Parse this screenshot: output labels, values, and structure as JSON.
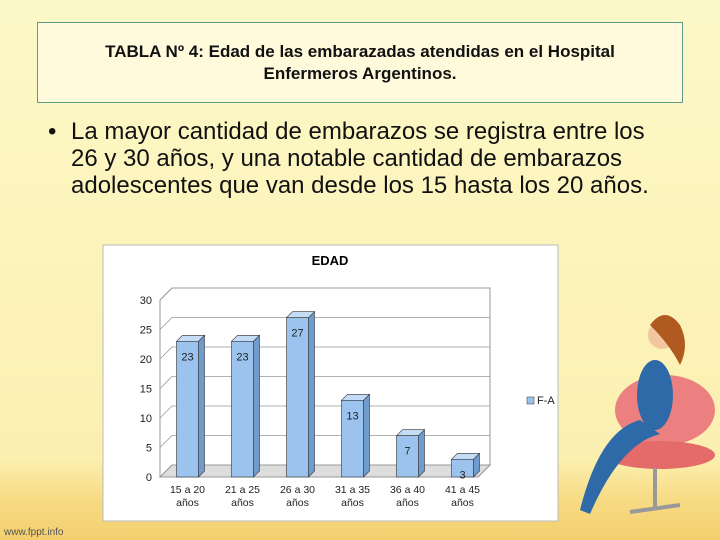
{
  "slide": {
    "title": "TABLA Nº 4: Edad de las embarazadas atendidas en el Hospital Enfermeros Argentinos.",
    "bullet": "La mayor cantidad de embarazos se registra entre los 26 y 30 años, y una notable cantidad de embarazos adolescentes que van desde los 15 hasta los 20 años.",
    "footer": "www.fppt.info"
  },
  "chart_data": {
    "type": "bar",
    "title": "EDAD",
    "categories": [
      "15 a 20 años",
      "21 a 25 años",
      "26 a 30 años",
      "31 a 35 años",
      "36 a 40 años",
      "41 a 45 años"
    ],
    "series": [
      {
        "name": "F-A",
        "color": "#9cc3ee",
        "values": [
          23,
          23,
          27,
          13,
          7,
          3
        ]
      }
    ],
    "ylim": [
      0,
      30
    ],
    "yticks": [
      0,
      5,
      10,
      15,
      20,
      25,
      30
    ],
    "grid": true,
    "legend": "right"
  }
}
